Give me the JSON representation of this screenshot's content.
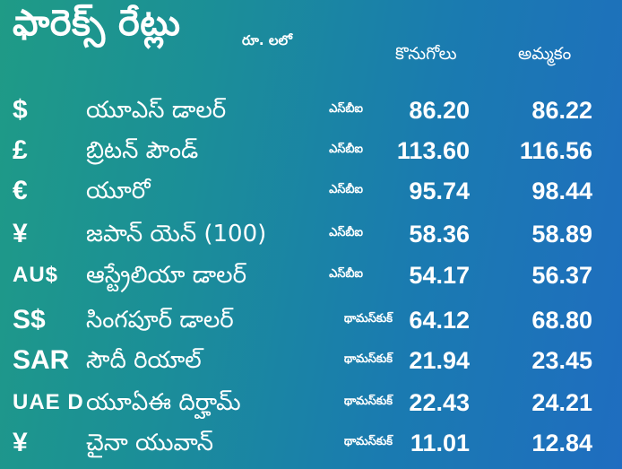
{
  "header": {
    "title": "ఫారెక్స్ రేట్లు",
    "unit": "రూ. లలో",
    "buy_label": "కొనుగోలు",
    "sell_label": "అమ్మకం"
  },
  "rows": [
    {
      "symbol": "$",
      "name": "యూఎస్ డాలర్",
      "source": "ఎస్‌బీఐ",
      "buy": "86.20",
      "sell": "86.22"
    },
    {
      "symbol": "£",
      "name": "బ్రిటన్ పౌండ్",
      "source": "ఎస్‌బీఐ",
      "buy": "113.60",
      "sell": "116.56"
    },
    {
      "symbol": "€",
      "name": "యూరో",
      "source": "ఎస్‌బీఐ",
      "buy": "95.74",
      "sell": "98.44"
    },
    {
      "symbol": "¥",
      "name": "జపాన్ యెన్ (100)",
      "source": "ఎస్‌బీఐ",
      "buy": "58.36",
      "sell": "58.89"
    },
    {
      "symbol": "AU$",
      "name": "ఆస్ట్రేలియా డాలర్",
      "source": "ఎస్‌బీఐ",
      "buy": "54.17",
      "sell": "56.37"
    },
    {
      "symbol": "S$",
      "name": "సింగపూర్ డాలర్",
      "source": "థామస్‌కుక్",
      "buy": "64.12",
      "sell": "68.80"
    },
    {
      "symbol": "SAR",
      "name": "సౌదీ రియాల్",
      "source": "థామస్‌కుక్",
      "buy": "21.94",
      "sell": "23.45"
    },
    {
      "symbol": "UAE D",
      "name": "యూఏఈ దిర్హామ్",
      "source": "థామస్‌కుక్",
      "buy": "22.43",
      "sell": "24.21"
    },
    {
      "symbol": "¥",
      "name": "చైనా యువాన్",
      "source": "థామస్‌కుక్",
      "buy": "11.01",
      "sell": "12.84"
    }
  ]
}
